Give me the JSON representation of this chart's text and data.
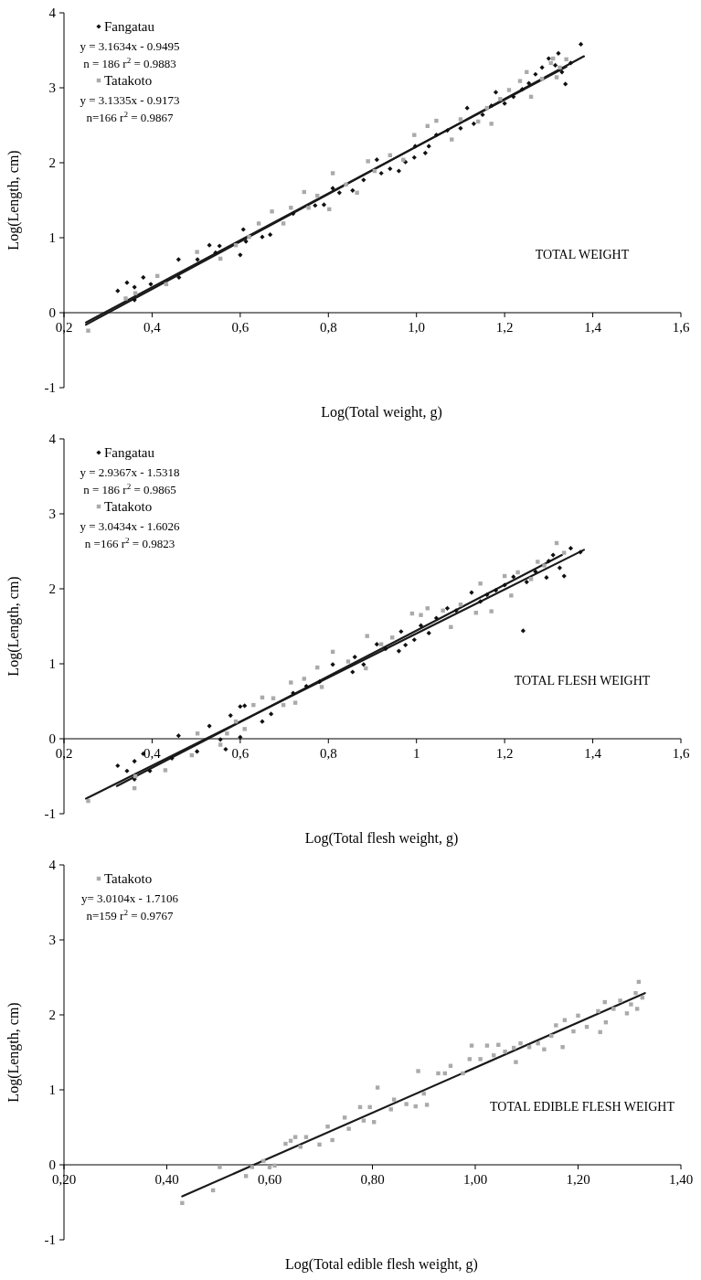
{
  "chart_data": [
    {
      "type": "scatter",
      "title": "TOTAL WEIGHT",
      "xlabel": "Log(Total weight, g)",
      "ylabel": "Log(Length, cm)",
      "xlim": [
        0.2,
        1.6
      ],
      "ylim": [
        -1,
        4
      ],
      "xticks": [
        {
          "value": 0.2,
          "label": "0,2"
        },
        {
          "value": 0.4,
          "label": "0,4"
        },
        {
          "value": 0.6,
          "label": "0,6"
        },
        {
          "value": 0.8,
          "label": "0,8"
        },
        {
          "value": 1.0,
          "label": "1,0"
        },
        {
          "value": 1.2,
          "label": "1,2"
        },
        {
          "value": 1.4,
          "label": "1,4"
        },
        {
          "value": 1.6,
          "label": "1,6"
        }
      ],
      "yticks": [
        -1,
        0,
        1,
        2,
        3,
        4
      ],
      "grid": false,
      "legend": "top left",
      "annotations": [
        "y = 3.1634x - 0.9495",
        "n = 186 r$^{2}$ = 0.9883",
        "y = 3.1335x - 0.9173",
        "n=166 r$^{2}$ = 0.9867"
      ],
      "series": [
        {
          "name": "Fangatau",
          "marker": "diamond",
          "color": "#111111",
          "x": [
            0.322,
            0.343,
            0.36,
            0.36,
            0.38,
            0.397,
            0.46,
            0.461,
            0.503,
            0.53,
            0.544,
            0.553,
            0.6,
            0.607,
            0.613,
            0.65,
            0.668,
            0.72,
            0.77,
            0.79,
            0.81,
            0.825,
            0.855,
            0.88,
            0.91,
            0.92,
            0.94,
            0.96,
            0.975,
            0.995,
            0.997,
            1.02,
            1.028,
            1.045,
            1.07,
            1.1,
            1.115,
            1.13,
            1.15,
            1.17,
            1.18,
            1.2,
            1.22,
            1.24,
            1.255,
            1.27,
            1.285,
            1.3,
            1.315,
            1.322,
            1.33,
            1.338,
            1.35,
            1.373
          ],
          "values": [
            0.29,
            0.4,
            0.34,
            0.17,
            0.47,
            0.38,
            0.71,
            0.47,
            0.71,
            0.9,
            0.8,
            0.89,
            0.77,
            1.11,
            0.95,
            1.01,
            1.04,
            1.32,
            1.43,
            1.44,
            1.66,
            1.6,
            1.63,
            1.77,
            2.04,
            1.86,
            1.92,
            1.89,
            2.01,
            2.07,
            2.22,
            2.13,
            2.22,
            2.37,
            2.43,
            2.46,
            2.73,
            2.52,
            2.64,
            2.76,
            2.94,
            2.79,
            2.88,
            2.98,
            3.06,
            3.18,
            3.27,
            3.39,
            3.3,
            3.46,
            3.21,
            3.05,
            3.33,
            3.58
          ]
        },
        {
          "name": "Tatakoto",
          "marker": "square",
          "color": "#aaaaaa",
          "x": [
            0.255,
            0.34,
            0.362,
            0.412,
            0.432,
            0.502,
            0.555,
            0.59,
            0.62,
            0.642,
            0.672,
            0.698,
            0.715,
            0.745,
            0.755,
            0.775,
            0.802,
            0.81,
            0.84,
            0.865,
            0.89,
            0.905,
            0.94,
            0.97,
            0.995,
            1.025,
            1.045,
            1.08,
            1.1,
            1.14,
            1.16,
            1.17,
            1.19,
            1.21,
            1.235,
            1.25,
            1.26,
            1.285,
            1.305,
            1.31,
            1.318,
            1.325,
            1.34
          ],
          "values": [
            -0.24,
            0.19,
            0.26,
            0.49,
            0.38,
            0.81,
            0.72,
            0.9,
            1.01,
            1.19,
            1.35,
            1.19,
            1.4,
            1.61,
            1.4,
            1.56,
            1.38,
            1.86,
            1.71,
            1.6,
            2.02,
            1.89,
            2.1,
            2.04,
            2.37,
            2.49,
            2.56,
            2.31,
            2.58,
            2.55,
            2.73,
            2.52,
            2.85,
            2.97,
            3.09,
            3.21,
            2.88,
            3.12,
            3.33,
            3.39,
            3.14,
            3.27,
            3.38
          ]
        },
        {
          "type": "line",
          "line_style": "solid",
          "color": "#1a1a1a",
          "x": [
            0.25,
            1.38
          ],
          "values": [
            -0.16,
            3.42
          ]
        },
        {
          "type": "line",
          "line_style": "solid",
          "color": "#1a1a1a",
          "x": [
            0.25,
            1.34
          ],
          "values": [
            -0.13,
            3.28
          ]
        }
      ]
    },
    {
      "type": "scatter",
      "title": "TOTAL FLESH WEIGHT",
      "xlabel": "Log(Total flesh weight, g)",
      "ylabel": "Log(Length, cm)",
      "xlim": [
        0.2,
        1.6
      ],
      "ylim": [
        -1,
        4
      ],
      "xticks": [
        {
          "value": 0.2,
          "label": "0,2"
        },
        {
          "value": 0.4,
          "label": "0,4"
        },
        {
          "value": 0.6,
          "label": "0,6"
        },
        {
          "value": 0.8,
          "label": "0,8"
        },
        1,
        {
          "value": 1.2,
          "label": "1,2"
        },
        {
          "value": 1.4,
          "label": "1,4"
        },
        {
          "value": 1.6,
          "label": "1,6"
        }
      ],
      "yticks": [
        -1,
        0,
        1,
        2,
        3,
        4
      ],
      "grid": false,
      "legend": "top left",
      "annotations": [
        "y = 2.9367x - 1.5318",
        "n = 186 r$^{2}$ = 0.9865",
        "y = 3.0434x - 1.6026",
        "n =166 r$^{2}$ = 0.9823"
      ],
      "series": [
        {
          "name": "Fangatau",
          "marker": "diamond",
          "color": "#111111",
          "x": [
            0.322,
            0.343,
            0.36,
            0.36,
            0.38,
            0.395,
            0.445,
            0.46,
            0.502,
            0.53,
            0.555,
            0.567,
            0.578,
            0.6,
            0.61,
            0.6,
            0.65,
            0.67,
            0.72,
            0.75,
            0.78,
            0.81,
            0.855,
            0.86,
            0.88,
            0.91,
            0.93,
            0.96,
            0.965,
            0.975,
            0.995,
            1.01,
            1.028,
            1.045,
            1.07,
            1.09,
            1.125,
            1.145,
            1.16,
            1.18,
            1.2,
            1.22,
            1.242,
            1.25,
            1.27,
            1.295,
            1.3,
            1.31,
            1.325,
            1.335,
            1.35,
            1.372
          ],
          "values": [
            -0.36,
            -0.43,
            -0.3,
            -0.54,
            -0.2,
            -0.43,
            -0.26,
            0.04,
            -0.17,
            0.17,
            -0.01,
            -0.14,
            0.31,
            0.43,
            0.44,
            0.02,
            0.23,
            0.33,
            0.61,
            0.7,
            0.76,
            0.99,
            0.89,
            1.09,
            0.99,
            1.26,
            1.2,
            1.17,
            1.43,
            1.25,
            1.32,
            1.51,
            1.41,
            1.61,
            1.74,
            1.71,
            1.95,
            1.83,
            1.92,
            1.98,
            2.05,
            2.16,
            1.44,
            2.09,
            2.23,
            2.15,
            2.37,
            2.45,
            2.28,
            2.17,
            2.54,
            2.49
          ]
        },
        {
          "name": "Tatakoto",
          "marker": "square",
          "color": "#aaaaaa",
          "x": [
            0.255,
            0.36,
            0.362,
            0.43,
            0.49,
            0.503,
            0.555,
            0.57,
            0.59,
            0.61,
            0.63,
            0.65,
            0.675,
            0.698,
            0.715,
            0.725,
            0.745,
            0.775,
            0.785,
            0.81,
            0.845,
            0.885,
            0.888,
            0.92,
            0.945,
            0.99,
            1.01,
            1.025,
            1.06,
            1.078,
            1.1,
            1.135,
            1.145,
            1.17,
            1.2,
            1.215,
            1.23,
            1.26,
            1.275,
            1.29,
            1.318,
            1.335
          ],
          "values": [
            -0.83,
            -0.66,
            -0.5,
            -0.42,
            -0.22,
            0.07,
            -0.08,
            0.07,
            0.23,
            0.13,
            0.45,
            0.55,
            0.54,
            0.45,
            0.75,
            0.48,
            0.8,
            0.95,
            0.69,
            1.16,
            1.03,
            0.94,
            1.37,
            1.26,
            1.35,
            1.67,
            1.65,
            1.74,
            1.71,
            1.49,
            1.79,
            1.68,
            2.07,
            1.7,
            2.17,
            1.91,
            2.22,
            2.13,
            2.36,
            2.31,
            2.61,
            2.48
          ]
        },
        {
          "type": "line",
          "line_style": "solid",
          "color": "#1a1a1a",
          "x": [
            0.25,
            1.38
          ],
          "values": [
            -0.8,
            2.52
          ]
        },
        {
          "type": "line",
          "line_style": "solid",
          "color": "#1a1a1a",
          "x": [
            0.32,
            1.33
          ],
          "values": [
            -0.63,
            2.45
          ]
        }
      ]
    },
    {
      "type": "scatter",
      "title": "TOTAL EDIBLE FLESH WEIGHT",
      "xlabel": "Log(Total edible flesh weight, g)",
      "ylabel": "Log(Length, cm)",
      "xlim": [
        0.2,
        1.4
      ],
      "ylim": [
        -1,
        4
      ],
      "xticks": [
        {
          "value": 0.2,
          "label": "0,20"
        },
        {
          "value": 0.4,
          "label": "0,40"
        },
        {
          "value": 0.6,
          "label": "0,60"
        },
        {
          "value": 0.8,
          "label": "0,80"
        },
        {
          "value": 1.0,
          "label": "1,00"
        },
        {
          "value": 1.2,
          "label": "1,20"
        },
        {
          "value": 1.4,
          "label": "1,40"
        }
      ],
      "yticks": [
        -1,
        0,
        1,
        2,
        3,
        4
      ],
      "grid": false,
      "legend": "top left",
      "annotations": [
        "y= 3.0104x - 1.7106",
        "n=159 r$^{2}$ = 0.9767"
      ],
      "series": [
        {
          "name": "Tatakoto",
          "marker": "square",
          "color": "#aaaaaa",
          "x": [
            0.43,
            0.49,
            0.503,
            0.554,
            0.566,
            0.588,
            0.6,
            0.61,
            0.631,
            0.641,
            0.65,
            0.66,
            0.671,
            0.697,
            0.713,
            0.722,
            0.746,
            0.754,
            0.776,
            0.783,
            0.795,
            0.803,
            0.81,
            0.836,
            0.842,
            0.866,
            0.884,
            0.889,
            0.9,
            0.906,
            0.928,
            0.941,
            0.952,
            0.976,
            0.989,
            0.993,
            1.01,
            1.023,
            1.036,
            1.045,
            1.058,
            1.075,
            1.079,
            1.088,
            1.105,
            1.122,
            1.134,
            1.148,
            1.157,
            1.17,
            1.174,
            1.191,
            1.2,
            1.217,
            1.239,
            1.243,
            1.252,
            1.254,
            1.269,
            1.282,
            1.295,
            1.303,
            1.312,
            1.315,
            1.318,
            1.325
          ],
          "values": [
            -0.51,
            -0.34,
            -0.03,
            -0.15,
            -0.03,
            0.05,
            -0.03,
            -0.01,
            0.28,
            0.32,
            0.37,
            0.24,
            0.37,
            0.27,
            0.51,
            0.33,
            0.63,
            0.48,
            0.77,
            0.59,
            0.77,
            0.57,
            1.03,
            0.74,
            0.87,
            0.81,
            0.78,
            1.25,
            0.95,
            0.8,
            1.22,
            1.22,
            1.32,
            1.22,
            1.41,
            1.59,
            1.41,
            1.59,
            1.46,
            1.6,
            1.51,
            1.56,
            1.37,
            1.62,
            1.57,
            1.62,
            1.54,
            1.72,
            1.86,
            1.57,
            1.93,
            1.78,
            1.99,
            1.84,
            2.05,
            1.77,
            2.17,
            1.9,
            2.08,
            2.19,
            2.02,
            2.14,
            2.29,
            2.08,
            2.44,
            2.23
          ]
        },
        {
          "type": "line",
          "line_style": "solid",
          "color": "#1a1a1a",
          "x": [
            0.43,
            1.33
          ],
          "values": [
            -0.42,
            2.29
          ]
        }
      ]
    }
  ]
}
